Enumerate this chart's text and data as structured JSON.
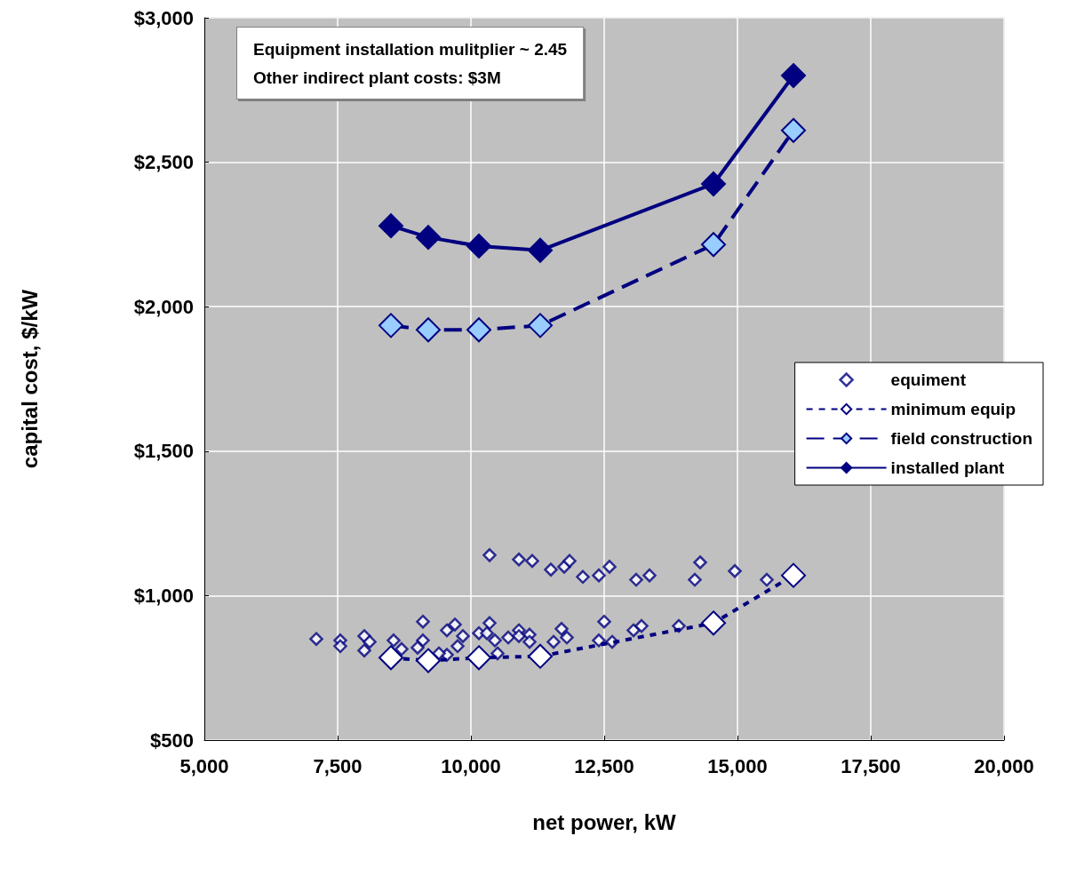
{
  "chart_data": {
    "type": "scatter",
    "xlabel": "net power, kW",
    "ylabel": "capital cost, $/kW",
    "annotations": [
      "Equipment installation mulitplier ~ 2.45",
      "Other indirect plant costs: $3M"
    ],
    "xlim": [
      5000,
      20000
    ],
    "xticks": [
      {
        "value": 5000,
        "label": "5,000"
      },
      {
        "value": 7500,
        "label": "7,500"
      },
      {
        "value": 10000,
        "label": "10,000"
      },
      {
        "value": 12500,
        "label": "12,500"
      },
      {
        "value": 15000,
        "label": "15,000"
      },
      {
        "value": 17500,
        "label": "17,500"
      },
      {
        "value": 20000,
        "label": "20,000"
      }
    ],
    "ylim": [
      500,
      3000
    ],
    "yticks": [
      {
        "value": 500,
        "label": "$500"
      },
      {
        "value": 1000,
        "label": "$1,000"
      },
      {
        "value": 1500,
        "label": "$1,500"
      },
      {
        "value": 2000,
        "label": "$2,000"
      },
      {
        "value": 2500,
        "label": "$2,500"
      },
      {
        "value": 3000,
        "label": "$3,000"
      }
    ],
    "grid": true,
    "legend": "right",
    "marker": "diamond",
    "series": [
      {
        "name": "equiment",
        "color": "#ffffff",
        "x": [
          7100,
          7550,
          7550,
          8000,
          8100,
          8000,
          8550,
          8700,
          9100,
          9100,
          9000,
          9550,
          9700,
          9850,
          9750,
          9550,
          9400,
          10350,
          10900,
          11150,
          11500,
          11750,
          10150,
          10350,
          10300,
          10450,
          10700,
          10900,
          10900,
          11100,
          11100,
          10500,
          11550,
          11700,
          11800,
          11850,
          12100,
          12400,
          12600,
          13100,
          13350,
          14300,
          14200,
          14950,
          15550,
          12500,
          12400,
          12650,
          13050,
          13200,
          13900
        ],
        "values": [
          850,
          845,
          825,
          860,
          840,
          810,
          845,
          815,
          910,
          845,
          820,
          880,
          900,
          860,
          825,
          795,
          800,
          1140,
          1125,
          1120,
          1090,
          1100,
          870,
          905,
          870,
          845,
          855,
          880,
          860,
          865,
          840,
          800,
          840,
          885,
          855,
          1120,
          1065,
          1070,
          1100,
          1055,
          1070,
          1115,
          1055,
          1085,
          1055,
          910,
          845,
          840,
          880,
          895,
          895
        ]
      },
      {
        "name": "minimum equip",
        "type": "line",
        "line_style": "dotted",
        "color": "#ffffff",
        "x": [
          8500,
          9200,
          10150,
          11300,
          14550,
          16050
        ],
        "values": [
          785,
          775,
          785,
          790,
          905,
          1070
        ]
      },
      {
        "name": "field construction",
        "type": "line",
        "line_style": "dashed",
        "color": "#99ccff",
        "x": [
          8500,
          9200,
          10150,
          11300,
          14550,
          16050
        ],
        "values": [
          1935,
          1920,
          1920,
          1935,
          2215,
          2610
        ]
      },
      {
        "name": "installed plant",
        "type": "line",
        "line_style": "solid",
        "color": "#000080",
        "x": [
          8500,
          9200,
          10150,
          11300,
          14550,
          16050
        ],
        "values": [
          2280,
          2240,
          2210,
          2195,
          2425,
          2800
        ]
      }
    ]
  }
}
